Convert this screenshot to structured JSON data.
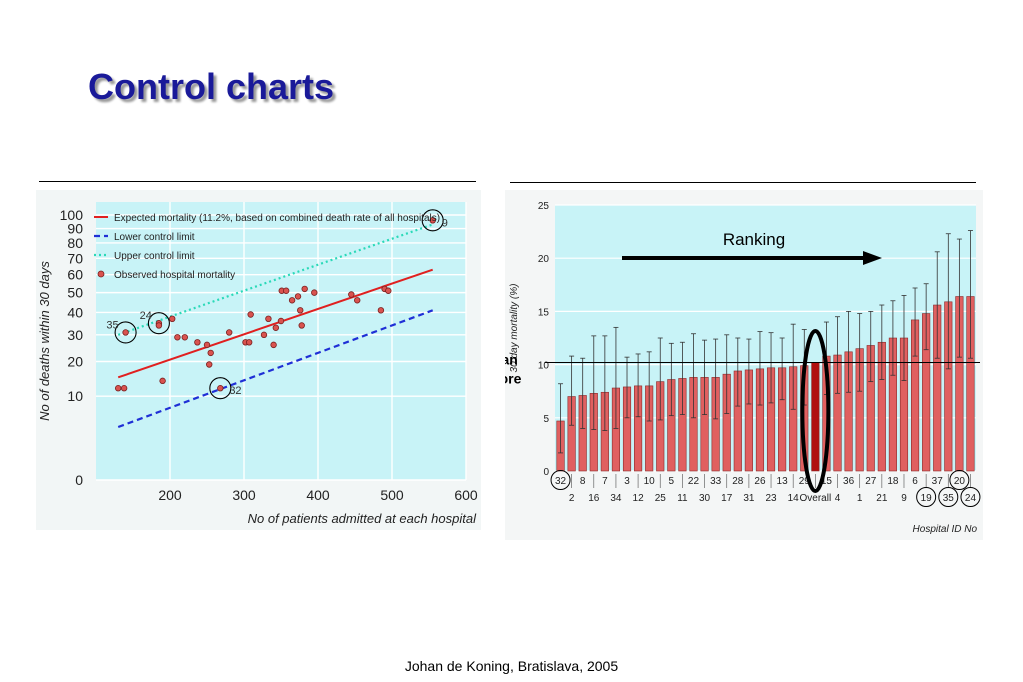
{
  "slide": {
    "title": "Control charts",
    "footer": "Johan de Koning, Bratislava, 2005"
  },
  "colors": {
    "title": "#1a1a99",
    "plot_bg": "#c8f3f7",
    "expected_line": "#e02020",
    "lower_limit": "#1f2fd6",
    "upper_limit": "#2ad9b8",
    "point_fill": "#d9534f",
    "bar_fill": "#e06060",
    "overall_bar": "#b01010"
  },
  "chart_data": [
    {
      "type": "scatter",
      "title": "",
      "xlabel": "No of patients admitted at each hospital",
      "ylabel": "No of deaths within 30 days",
      "x_ticks": [
        "200",
        "300",
        "400",
        "500",
        "600"
      ],
      "y_ticks": [
        "0",
        "10",
        "20",
        "30",
        "40",
        "50",
        "60",
        "70",
        "80",
        "90",
        "100"
      ],
      "xlim": [
        100,
        600
      ],
      "y_scale": "sqrt",
      "ylim": [
        0,
        100
      ],
      "grid": true,
      "legend": "top-left",
      "legend_entries": [
        "Expected mortality (11.2%, based on combined death rate of all hospitals)",
        "Lower control limit",
        "Upper control limit",
        "Observed hospital mortality"
      ],
      "series": [
        {
          "name": "Expected mortality (11.2%, based on combined death rate of all hospitals)",
          "kind": "line",
          "x": [
            130,
            555
          ],
          "y": [
            15,
            63
          ]
        },
        {
          "name": "Lower control limit",
          "kind": "line",
          "x": [
            130,
            555
          ],
          "y": [
            4,
            41
          ]
        },
        {
          "name": "Upper control limit",
          "kind": "line",
          "x": [
            130,
            555
          ],
          "y": [
            30,
            93
          ]
        },
        {
          "name": "Observed hospital mortality",
          "kind": "points",
          "points": [
            {
              "x": 130,
              "y": 12
            },
            {
              "x": 138,
              "y": 12
            },
            {
              "x": 140,
              "y": 31
            },
            {
              "x": 185,
              "y": 35
            },
            {
              "x": 185,
              "y": 34
            },
            {
              "x": 190,
              "y": 14
            },
            {
              "x": 203,
              "y": 37
            },
            {
              "x": 210,
              "y": 29
            },
            {
              "x": 220,
              "y": 29
            },
            {
              "x": 237,
              "y": 27
            },
            {
              "x": 250,
              "y": 26
            },
            {
              "x": 255,
              "y": 23
            },
            {
              "x": 253,
              "y": 19
            },
            {
              "x": 268,
              "y": 12
            },
            {
              "x": 280,
              "y": 31
            },
            {
              "x": 302,
              "y": 27
            },
            {
              "x": 307,
              "y": 27
            },
            {
              "x": 309,
              "y": 39
            },
            {
              "x": 327,
              "y": 30
            },
            {
              "x": 333,
              "y": 37
            },
            {
              "x": 340,
              "y": 26
            },
            {
              "x": 343,
              "y": 33
            },
            {
              "x": 350,
              "y": 36
            },
            {
              "x": 351,
              "y": 51
            },
            {
              "x": 357,
              "y": 51
            },
            {
              "x": 365,
              "y": 46
            },
            {
              "x": 373,
              "y": 48
            },
            {
              "x": 376,
              "y": 41
            },
            {
              "x": 378,
              "y": 34
            },
            {
              "x": 382,
              "y": 52
            },
            {
              "x": 395,
              "y": 50
            },
            {
              "x": 445,
              "y": 49
            },
            {
              "x": 453,
              "y": 46
            },
            {
              "x": 485,
              "y": 41
            },
            {
              "x": 490,
              "y": 52
            },
            {
              "x": 495,
              "y": 51
            },
            {
              "x": 555,
              "y": 96
            }
          ]
        }
      ],
      "annotations": [
        {
          "label": "35",
          "x": 140,
          "y": 31,
          "circled": true
        },
        {
          "label": "24",
          "x": 185,
          "y": 35,
          "circled": true
        },
        {
          "label": "32",
          "x": 268,
          "y": 12,
          "circled": true
        },
        {
          "label": "9",
          "x": 555,
          "y": 96,
          "circled": true
        }
      ]
    },
    {
      "type": "bar",
      "title": "",
      "ylabel": "30 day mortality (%)",
      "xlabel": "Hospital ID No",
      "ylim": [
        0,
        25
      ],
      "y_ticks": [
        "0",
        "5",
        "10",
        "15",
        "20",
        "25"
      ],
      "mean_score": 10.2,
      "categories": [
        "32",
        "2",
        "8",
        "16",
        "7",
        "34",
        "3",
        "12",
        "10",
        "25",
        "5",
        "11",
        "22",
        "30",
        "33",
        "17",
        "28",
        "31",
        "26",
        "23",
        "13",
        "14",
        "29",
        "Overall",
        "15",
        "4",
        "36",
        "1",
        "27",
        "21",
        "18",
        "9",
        "6",
        "19",
        "37",
        "35",
        "20",
        "24"
      ],
      "values": [
        4.7,
        7.0,
        7.1,
        7.3,
        7.4,
        7.8,
        7.9,
        8.0,
        8.0,
        8.4,
        8.6,
        8.7,
        8.8,
        8.8,
        8.8,
        9.1,
        9.4,
        9.5,
        9.6,
        9.7,
        9.7,
        9.8,
        9.9,
        10.2,
        10.8,
        10.9,
        11.2,
        11.5,
        11.8,
        12.1,
        12.5,
        12.5,
        14.2,
        14.8,
        15.6,
        15.9,
        16.4,
        16.4
      ],
      "upper": [
        8.2,
        10.8,
        10.6,
        12.7,
        12.7,
        13.5,
        10.7,
        11.0,
        11.2,
        12.5,
        12.0,
        12.1,
        12.9,
        12.3,
        12.4,
        12.8,
        12.5,
        12.4,
        13.1,
        13.0,
        12.5,
        13.8,
        13.3,
        10.2,
        14.0,
        14.5,
        15.0,
        14.8,
        15.0,
        15.6,
        16.0,
        16.5,
        17.2,
        17.6,
        20.6,
        22.3,
        21.8,
        22.6
      ],
      "lower": [
        1.7,
        4.3,
        4.0,
        3.9,
        3.8,
        4.0,
        5.0,
        5.1,
        4.7,
        4.8,
        5.2,
        5.3,
        5.0,
        5.3,
        4.9,
        5.4,
        6.1,
        6.3,
        6.2,
        6.4,
        6.7,
        5.8,
        6.2,
        10.2,
        7.2,
        7.3,
        7.4,
        7.5,
        8.4,
        8.6,
        9.0,
        8.5,
        10.8,
        11.4,
        10.6,
        9.6,
        10.7,
        10.6
      ],
      "circled_ids": [
        "32",
        "19",
        "35",
        "20",
        "24"
      ],
      "annotations": {
        "ranking": "Ranking",
        "mean_score": "Mean score"
      }
    }
  ]
}
